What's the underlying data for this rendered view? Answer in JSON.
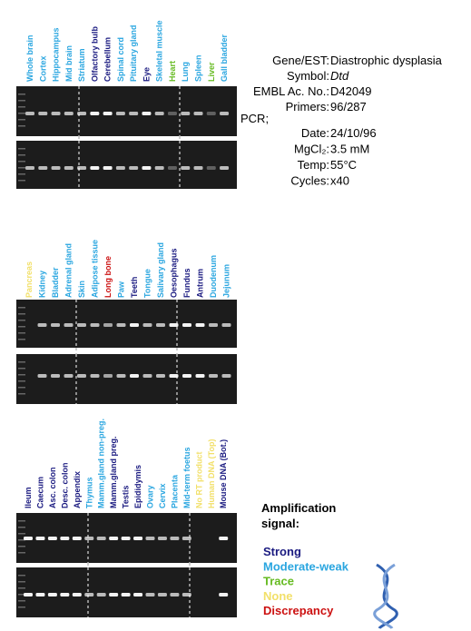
{
  "panels": [
    {
      "lanes": [
        {
          "label": "Whole brain",
          "color": "#2aa6e0"
        },
        {
          "label": "Cortex",
          "color": "#2aa6e0"
        },
        {
          "label": "Hippocampus",
          "color": "#2aa6e0"
        },
        {
          "label": "Mid brain",
          "color": "#2aa6e0"
        },
        {
          "label": "Striatum",
          "color": "#2aa6e0"
        },
        {
          "label": "Olfactory bulb",
          "color": "#1a1a80"
        },
        {
          "label": "Cerebellum",
          "color": "#1a1a80"
        },
        {
          "label": "Spinal cord",
          "color": "#2aa6e0"
        },
        {
          "label": "Pituitary gland",
          "color": "#2aa6e0"
        },
        {
          "label": "Eye",
          "color": "#1a1a80"
        },
        {
          "label": "Skeletal muscle",
          "color": "#2aa6e0"
        },
        {
          "label": "Heart",
          "color": "#66bb22"
        },
        {
          "label": "Lung",
          "color": "#2aa6e0"
        },
        {
          "label": "Spleen",
          "color": "#2aa6e0"
        },
        {
          "label": "Liver",
          "color": "#66bb22"
        },
        {
          "label": "Gall bladder",
          "color": "#2aa6e0"
        }
      ]
    },
    {
      "lanes": [
        {
          "label": "Pancreas",
          "color": "#f2e06a"
        },
        {
          "label": "Kidney",
          "color": "#2aa6e0"
        },
        {
          "label": "Bladder",
          "color": "#2aa6e0"
        },
        {
          "label": "Adrenal gland",
          "color": "#2aa6e0"
        },
        {
          "label": "Skin",
          "color": "#2aa6e0"
        },
        {
          "label": "Adipose tissue",
          "color": "#2aa6e0"
        },
        {
          "label": "Long bone",
          "color": "#cc1111"
        },
        {
          "label": "Paw",
          "color": "#2aa6e0"
        },
        {
          "label": "Teeth",
          "color": "#1a1a80"
        },
        {
          "label": "Tongue",
          "color": "#2aa6e0"
        },
        {
          "label": "Salivary gland",
          "color": "#2aa6e0"
        },
        {
          "label": "Oesophagus",
          "color": "#1a1a80"
        },
        {
          "label": "Fundus",
          "color": "#1a1a80"
        },
        {
          "label": "Antrum",
          "color": "#1a1a80"
        },
        {
          "label": "Duodenum",
          "color": "#2aa6e0"
        },
        {
          "label": "Jejunum",
          "color": "#2aa6e0"
        }
      ]
    },
    {
      "lanes": [
        {
          "label": "Ileum",
          "color": "#1a1a80"
        },
        {
          "label": "Caecum",
          "color": "#1a1a80"
        },
        {
          "label": "Asc. colon",
          "color": "#1a1a80"
        },
        {
          "label": "Desc. colon",
          "color": "#1a1a80"
        },
        {
          "label": "Appendix",
          "color": "#1a1a80"
        },
        {
          "label": "Thymus",
          "color": "#2aa6e0"
        },
        {
          "label": "Mamm.gland non-preg.",
          "color": "#2aa6e0"
        },
        {
          "label": "Mamm.gland preg.",
          "color": "#1a1a80"
        },
        {
          "label": "Testis",
          "color": "#1a1a80"
        },
        {
          "label": "Epididymis",
          "color": "#1a1a80"
        },
        {
          "label": "Ovary",
          "color": "#2aa6e0"
        },
        {
          "label": "Cervix",
          "color": "#2aa6e0"
        },
        {
          "label": "Placenta",
          "color": "#2aa6e0"
        },
        {
          "label": "Mid-term foetus",
          "color": "#2aa6e0"
        },
        {
          "label": "No RT product",
          "color": "#f2e06a"
        },
        {
          "label": "Human DNA (Top)",
          "color": "#f2e06a"
        },
        {
          "label": "Mouse DNA (Bot.)",
          "color": "#1a1a80"
        }
      ]
    }
  ],
  "info": {
    "rows": [
      {
        "key": "Gene/EST:",
        "value": "Diastrophic dysplasia"
      },
      {
        "key": "Symbol:",
        "value": "Dtd"
      },
      {
        "key": "EMBL Ac. No.:",
        "value": "D42049"
      },
      {
        "key": "Primers:",
        "value": "96/287"
      }
    ],
    "pcr_label": "PCR;",
    "pcr_rows": [
      {
        "key": "Date:",
        "value": "24/10/96"
      },
      {
        "key": "MgCl₂:",
        "value": "3.5 mM"
      },
      {
        "key": "Temp:",
        "value": "55°C"
      },
      {
        "key": "Cycles:",
        "value": "x40"
      }
    ]
  },
  "legend": {
    "title_lines": [
      "Amplification",
      "signal:"
    ],
    "items": [
      {
        "label": "Strong",
        "color": "#1a1a80"
      },
      {
        "label": "Moderate-weak",
        "color": "#2aa6e0"
      },
      {
        "label": "Trace",
        "color": "#66bb22"
      },
      {
        "label": "None",
        "color": "#f2e06a"
      },
      {
        "label": "Discrepancy",
        "color": "#cc1111"
      }
    ]
  }
}
